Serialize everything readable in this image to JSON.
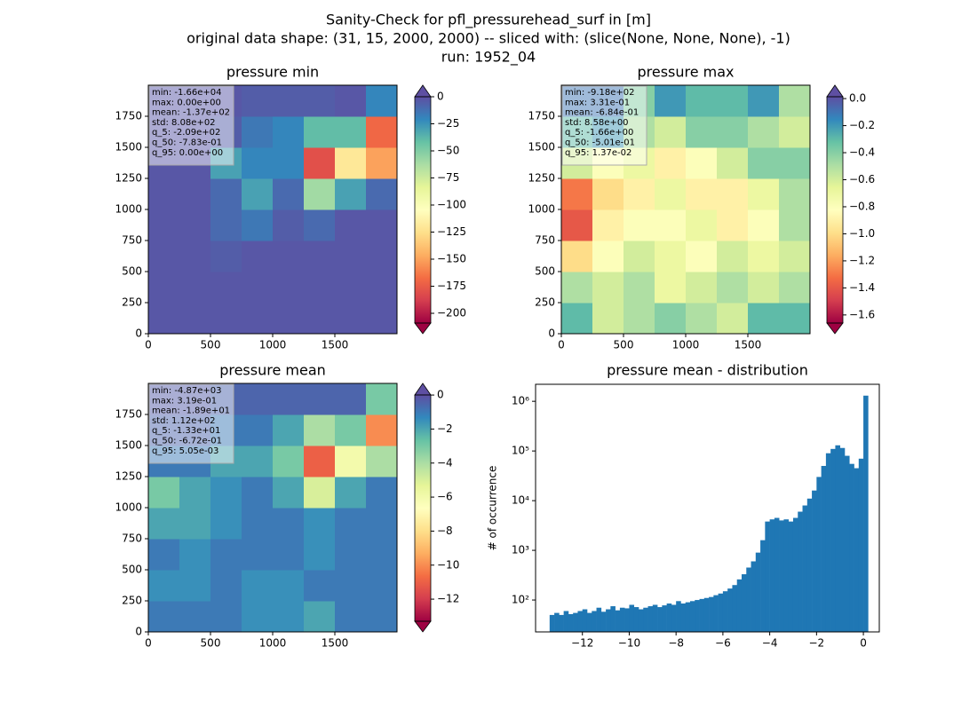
{
  "figure_title": [
    "Sanity-Check for pfl_pressurehead_surf in [m]",
    "original data shape: (31, 15, 2000, 2000) -- sliced with: (slice(None, None, None), -1)",
    "run: 1952_04"
  ],
  "chart_data": [
    {
      "type": "heatmap",
      "title": "pressure min",
      "colormap": "Spectral",
      "stats": [
        "min: -1.66e+04",
        "max: 0.00e+00",
        "mean: -1.37e+02",
        "std: 8.08e+02",
        "q_5: -2.09e+02",
        "q_50: -7.83e-01",
        "q_95: 0.00e+00"
      ],
      "xlim": [
        0,
        2000
      ],
      "ylim": [
        0,
        2000
      ],
      "xticks": [
        0,
        500,
        1000,
        1500
      ],
      "yticks": [
        0,
        250,
        500,
        750,
        1000,
        1250,
        1500,
        1750
      ],
      "clim": [
        -209,
        0
      ],
      "cticks": [
        0,
        {
          "value": -25,
          "label": "−25"
        },
        {
          "value": -50,
          "label": "−50"
        },
        {
          "value": -75,
          "label": "−75"
        },
        {
          "value": -100,
          "label": "−100"
        },
        {
          "value": -125,
          "label": "−125"
        },
        {
          "value": -150,
          "label": "−150"
        },
        {
          "value": -175,
          "label": "−175"
        },
        {
          "value": -200,
          "label": "−200"
        }
      ],
      "z": [
        [
          -3,
          -3,
          -3,
          -3,
          -3,
          -3,
          -3,
          -3
        ],
        [
          -3,
          -3,
          -3,
          -3,
          -3,
          -3,
          -3,
          -3
        ],
        [
          -3,
          -3,
          -5,
          -3,
          -3,
          -3,
          -3,
          -3
        ],
        [
          -3,
          -3,
          -10,
          -15,
          -5,
          -10,
          -3,
          -3
        ],
        [
          -3,
          -3,
          -10,
          -30,
          -10,
          -60,
          -30,
          -10
        ],
        [
          -3,
          -3,
          -30,
          -20,
          -20,
          -180,
          -120,
          -150
        ],
        [
          -3,
          -3,
          -5,
          -15,
          -20,
          -40,
          -40,
          -170
        ],
        [
          -3,
          -3,
          -3,
          -5,
          -5,
          -5,
          -3,
          -20
        ]
      ]
    },
    {
      "type": "heatmap",
      "title": "pressure max",
      "colormap": "Spectral",
      "stats": [
        "min: -9.18e+02",
        "max: 3.31e-01",
        "mean: -6.84e-01",
        "std: 8.58e+00",
        "q_5: -1.66e+00",
        "q_50: -5.01e-01",
        "q_95: 1.37e-02"
      ],
      "xlim": [
        0,
        2000
      ],
      "ylim": [
        0,
        2000
      ],
      "xticks": [
        0,
        500,
        1000,
        1500
      ],
      "yticks": [
        0,
        250,
        500,
        750,
        1000,
        1250,
        1500,
        1750
      ],
      "clim": [
        -1.66,
        0.0137
      ],
      "cticks": [
        {
          "value": 0,
          "label": "0.0"
        },
        {
          "value": -0.2,
          "label": "−0.2"
        },
        {
          "value": -0.4,
          "label": "−0.4"
        },
        {
          "value": -0.6,
          "label": "−0.6"
        },
        {
          "value": -0.8,
          "label": "−0.8"
        },
        {
          "value": -1.0,
          "label": "−1.0"
        },
        {
          "value": -1.2,
          "label": "−1.2"
        },
        {
          "value": -1.4,
          "label": "−1.4"
        },
        {
          "value": -1.6,
          "label": "−1.6"
        }
      ],
      "z": [
        [
          -0.3,
          -0.6,
          -0.5,
          -0.4,
          -0.5,
          -0.6,
          -0.3,
          -0.3
        ],
        [
          -0.5,
          -0.6,
          -0.5,
          -0.7,
          -0.6,
          -0.5,
          -0.6,
          -0.5
        ],
        [
          -1.0,
          -0.8,
          -0.6,
          -0.7,
          -0.8,
          -0.6,
          -0.7,
          -0.6
        ],
        [
          -1.4,
          -0.9,
          -0.8,
          -0.8,
          -0.7,
          -0.9,
          -0.8,
          -0.5
        ],
        [
          -1.3,
          -1.0,
          -0.9,
          -0.7,
          -0.9,
          -0.9,
          -0.7,
          -0.5
        ],
        [
          -0.6,
          -0.8,
          -0.7,
          -0.9,
          -0.8,
          -0.6,
          -0.4,
          -0.4
        ],
        [
          -0.3,
          -0.2,
          -0.5,
          -0.6,
          -0.4,
          -0.4,
          -0.5,
          -0.6
        ],
        [
          -0.1,
          -0.1,
          -0.4,
          -0.2,
          -0.3,
          -0.3,
          -0.2,
          -0.5
        ]
      ]
    },
    {
      "type": "heatmap",
      "title": "pressure mean",
      "colormap": "Spectral",
      "stats": [
        "min: -4.87e+03",
        "max: 3.19e-01",
        "mean: -1.89e+01",
        "std: 1.12e+02",
        "q_5: -1.33e+01",
        "q_50: -6.72e-01",
        "q_95: 5.05e-03"
      ],
      "xlim": [
        0,
        2000
      ],
      "ylim": [
        0,
        2000
      ],
      "xticks": [
        0,
        500,
        1000,
        1500
      ],
      "yticks": [
        0,
        250,
        500,
        750,
        1000,
        1250,
        1500,
        1750
      ],
      "clim": [
        -13.3,
        0.00505
      ],
      "cticks": [
        0,
        {
          "value": -2,
          "label": "−2"
        },
        {
          "value": -4,
          "label": "−4"
        },
        {
          "value": -6,
          "label": "−6"
        },
        {
          "value": -8,
          "label": "−8"
        },
        {
          "value": -10,
          "label": "−10"
        },
        {
          "value": -12,
          "label": "−12"
        }
      ],
      "z": [
        [
          -1,
          -1,
          -1,
          -1.5,
          -1.5,
          -2,
          -1,
          -1
        ],
        [
          -1.5,
          -1.5,
          -1,
          -1.5,
          -1.5,
          -1,
          -1,
          -1
        ],
        [
          -1,
          -1.5,
          -1,
          -1,
          -1,
          -1.5,
          -1,
          -1
        ],
        [
          -2,
          -2,
          -1.5,
          -1,
          -1,
          -1.5,
          -1,
          -1
        ],
        [
          -3,
          -2,
          -1.5,
          -1,
          -2,
          -5,
          -2,
          -1
        ],
        [
          -1,
          -1,
          -2,
          -2,
          -3,
          -11,
          -6,
          -4
        ],
        [
          -0.5,
          -0.5,
          -1,
          -1,
          -2,
          -4,
          -3,
          -10
        ],
        [
          -0.3,
          -0.3,
          -0.5,
          -0.5,
          -0.5,
          -0.5,
          -0.5,
          -3
        ]
      ]
    },
    {
      "type": "histogram",
      "title": "pressure mean - distribution",
      "ylabel": "# of occurrence",
      "color": "#1f77b4",
      "yscale": "log",
      "bins": [
        -13.4,
        -13.2,
        -13.0,
        -12.8,
        -12.6,
        -12.4,
        -12.2,
        -12.0,
        -11.8,
        -11.6,
        -11.4,
        -11.2,
        -11.0,
        -10.8,
        -10.6,
        -10.4,
        -10.2,
        -10.0,
        -9.8,
        -9.6,
        -9.4,
        -9.2,
        -9.0,
        -8.8,
        -8.6,
        -8.4,
        -8.2,
        -8.0,
        -7.8,
        -7.6,
        -7.4,
        -7.2,
        -7.0,
        -6.8,
        -6.6,
        -6.4,
        -6.2,
        -6.0,
        -5.8,
        -5.6,
        -5.4,
        -5.2,
        -5.0,
        -4.8,
        -4.6,
        -4.4,
        -4.2,
        -4.0,
        -3.8,
        -3.6,
        -3.4,
        -3.2,
        -3.0,
        -2.8,
        -2.6,
        -2.4,
        -2.2,
        -2.0,
        -1.8,
        -1.6,
        -1.4,
        -1.2,
        -1.0,
        -0.8,
        -0.6,
        -0.4,
        -0.2,
        0.0,
        0.2
      ],
      "counts": [
        50,
        55,
        50,
        60,
        52,
        55,
        60,
        65,
        55,
        60,
        70,
        58,
        65,
        75,
        62,
        70,
        68,
        80,
        72,
        65,
        70,
        75,
        80,
        72,
        78,
        85,
        80,
        95,
        85,
        90,
        95,
        100,
        105,
        110,
        115,
        125,
        135,
        150,
        170,
        200,
        260,
        330,
        450,
        600,
        900,
        1600,
        3800,
        4200,
        4500,
        4000,
        4200,
        3800,
        4500,
        6000,
        8000,
        11000,
        16000,
        30000,
        50000,
        90000,
        110000,
        130000,
        115000,
        80000,
        55000,
        45000,
        70000,
        1300000
      ],
      "xlim": [
        -14.0,
        0.68
      ],
      "ylim": [
        22.8,
        2200000
      ],
      "xticks": [
        {
          "value": -12,
          "label": "−12"
        },
        {
          "value": -10,
          "label": "−10"
        },
        {
          "value": -8,
          "label": "−8"
        },
        {
          "value": -6,
          "label": "−6"
        },
        {
          "value": -4,
          "label": "−4"
        },
        {
          "value": -2,
          "label": "−2"
        },
        0
      ],
      "yticks": [
        {
          "value": 100,
          "label": "10²"
        },
        {
          "value": 1000,
          "label": "10³"
        },
        {
          "value": 10000,
          "label": "10⁴"
        },
        {
          "value": 100000,
          "label": "10⁵"
        },
        {
          "value": 1000000,
          "label": "10⁶"
        }
      ]
    }
  ]
}
